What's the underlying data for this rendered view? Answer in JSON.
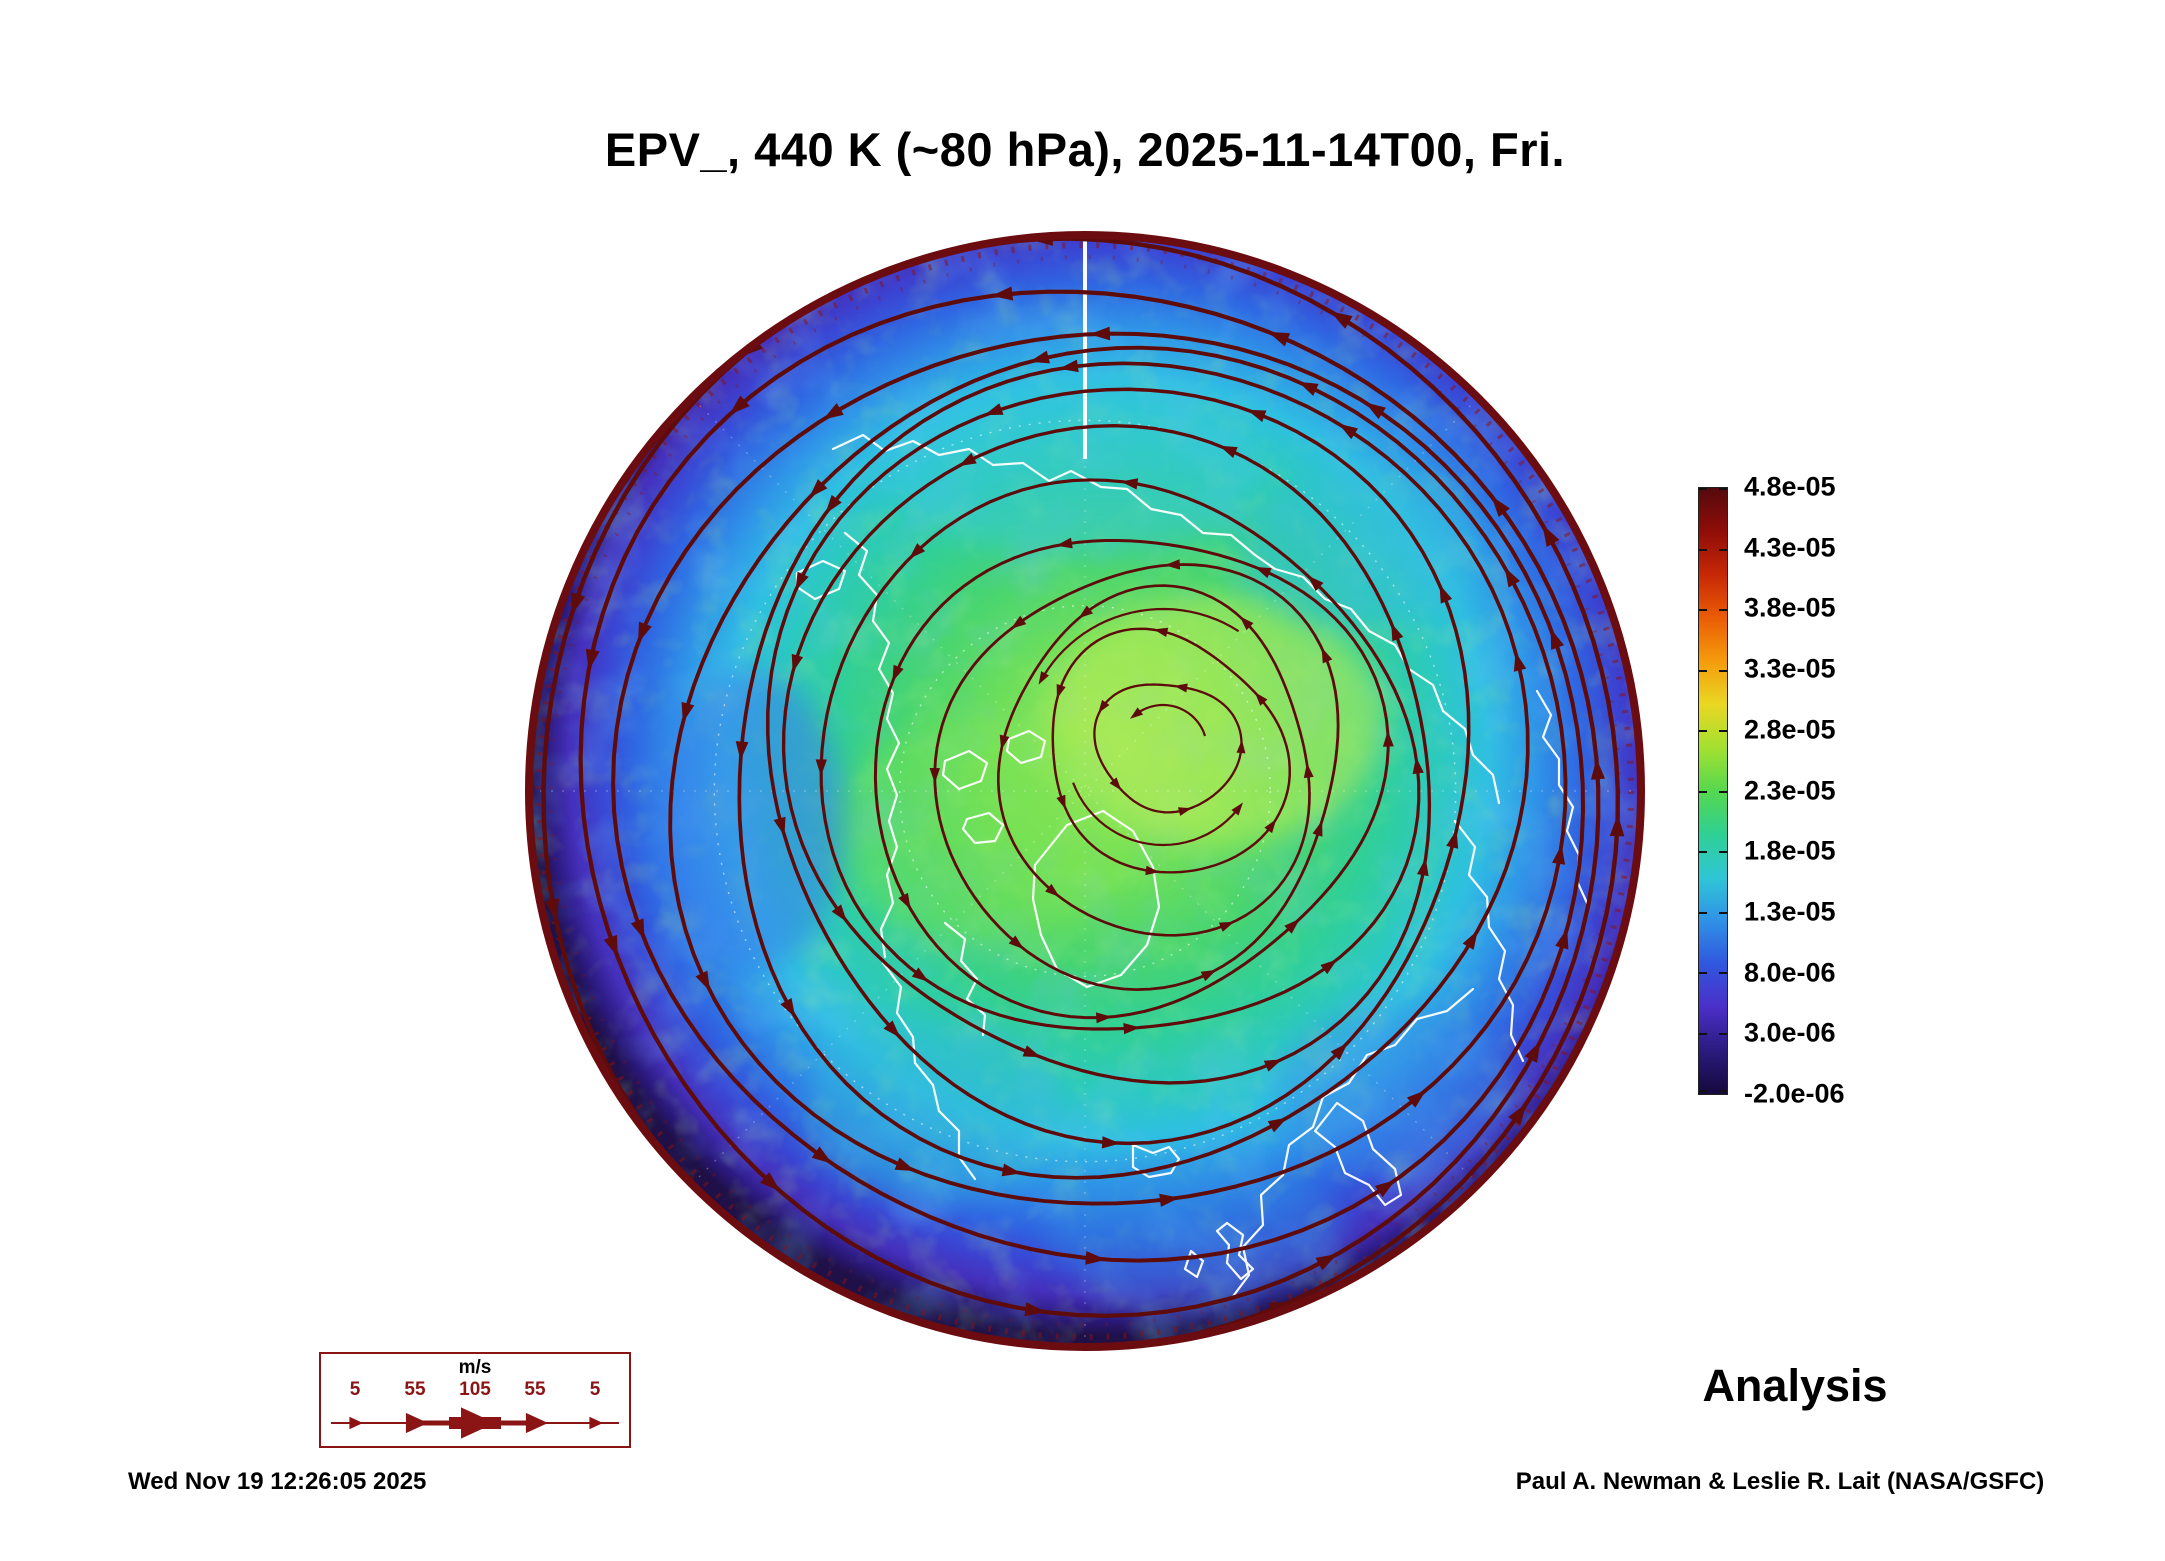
{
  "chart_data": {
    "type": "heatmap",
    "projection": "north-polar",
    "title": "EPV_, 440 K (~80 hPa), 2025-11-14T00, Fri.",
    "annotation": "Analysis",
    "footer_left": "Wed Nov 19 12:26:05 2025",
    "footer_right": "Paul A. Newman & Leslie R. Lait (NASA/GSFC)",
    "colorbar": {
      "ticks": [
        "4.8e-05",
        "4.3e-05",
        "3.8e-05",
        "3.3e-05",
        "2.8e-05",
        "2.3e-05",
        "1.8e-05",
        "1.3e-05",
        "8.0e-06",
        "3.0e-06",
        "-2.0e-06"
      ],
      "gradient": [
        "#550a0e",
        "#8f0d08",
        "#c62806",
        "#ea5c06",
        "#f59c0c",
        "#ead723",
        "#a4e030",
        "#55d84e",
        "#2fd094",
        "#2fc6d6",
        "#2f92e6",
        "#3156de",
        "#4b2fc8",
        "#2a1a7e",
        "#15093c"
      ]
    },
    "wind_legend": {
      "units": "m/s",
      "ticks": [
        "5",
        "55",
        "105",
        "55",
        "5"
      ],
      "color": "#8b1414"
    },
    "map": {
      "rim_color": "#6a0c10",
      "streamline_color": "#5e0b0b",
      "coastline_color": "#ffffff",
      "graticule_color": "#ffffff",
      "field_stops": [
        [
          0,
          "#8fe35f"
        ],
        [
          0.2,
          "#6fdf5a"
        ],
        [
          0.36,
          "#46d472"
        ],
        [
          0.48,
          "#30cf9a"
        ],
        [
          0.58,
          "#2cc9c0"
        ],
        [
          0.66,
          "#2fbfe2"
        ],
        [
          0.74,
          "#2f96e8"
        ],
        [
          0.82,
          "#2f66e2"
        ],
        [
          0.88,
          "#3a46d4"
        ],
        [
          0.93,
          "#4530bc"
        ],
        [
          0.97,
          "#2c1a80"
        ],
        [
          1,
          "#1f1048"
        ]
      ]
    }
  }
}
